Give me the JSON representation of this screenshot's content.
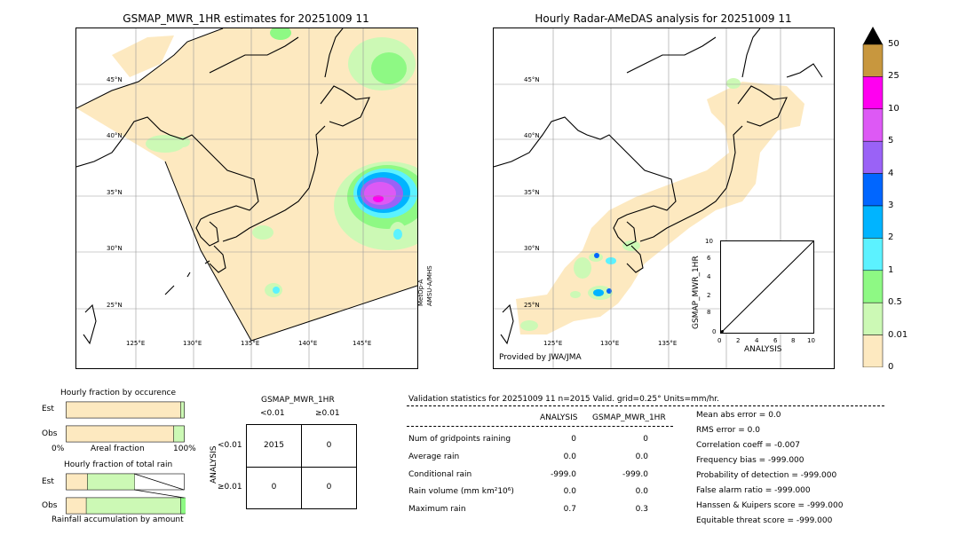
{
  "left_panel": {
    "title": "GSMAP_MWR_1HR estimates for 20251009 11",
    "lat_labels": [
      "45°N",
      "40°N",
      "35°N",
      "30°N",
      "25°N"
    ],
    "lon_labels": [
      "125°E",
      "130°E",
      "135°E",
      "140°E",
      "145°E"
    ],
    "sensor_label_1": "MetOp-A",
    "sensor_label_2": "AMSU-A/MHS"
  },
  "right_panel": {
    "title": "Hourly Radar-AMeDAS analysis for 20251009 11",
    "lat_labels": [
      "45°N",
      "40°N",
      "35°N",
      "30°N",
      "25°N"
    ],
    "lon_labels": [
      "125°E",
      "130°E",
      "135°E"
    ],
    "credit": "Provided by JWA/JMA"
  },
  "colorbar": {
    "labels": [
      "50",
      "25",
      "10",
      "5",
      "4",
      "3",
      "2",
      "1",
      "0.5",
      "0.01",
      "0"
    ],
    "colors": [
      "#c8973e",
      "#ff00f0",
      "#dd59f5",
      "#9a62f6",
      "#0066ff",
      "#00b4ff",
      "#5cf2ff",
      "#8ef984",
      "#ccf9b5",
      "#fde9c0"
    ]
  },
  "chart_data": [
    {
      "type": "scatter",
      "title": "",
      "xlabel": "ANALYSIS",
      "ylabel": "GSMAP_MWR_1HR",
      "xlim": [
        0,
        10
      ],
      "ylim": [
        0,
        10
      ],
      "x_ticks": [
        "0",
        "2",
        "4",
        "6",
        "8",
        "10"
      ],
      "y_ticks": [
        "0",
        "2",
        "4",
        "6",
        "8",
        "10"
      ],
      "reference_line": [
        [
          0,
          0
        ],
        [
          10,
          10
        ]
      ],
      "points": [
        [
          0,
          0
        ]
      ]
    },
    {
      "type": "bar",
      "title": "Hourly fraction by occurence",
      "categories": [
        "Est",
        "Obs"
      ],
      "xlabel": "Areal fraction",
      "x_ticks": [
        "0%",
        "100%"
      ],
      "series": [
        {
          "values": [
            0.97,
            0.91
          ],
          "color": "#fde9c0"
        },
        {
          "values": [
            0.03,
            0.09
          ],
          "color": "#ccf9b5"
        }
      ]
    },
    {
      "type": "bar",
      "title": "Hourly fraction of total rain",
      "categories": [
        "Est",
        "Obs"
      ],
      "xlabel": "Rainfall accumulation by amount",
      "series": [
        {
          "values": [
            0.18,
            0.17
          ],
          "color": "#fde9c0"
        },
        {
          "values": [
            0.4,
            0.8
          ],
          "color": "#ccf9b5"
        },
        {
          "values": [
            0,
            0.06
          ],
          "color": "#8ef984"
        }
      ]
    }
  ],
  "contingency": {
    "title": "GSMAP_MWR_1HR",
    "col_headers": [
      "<0.01",
      "≥0.01"
    ],
    "row_axis_label": "ANALYSIS",
    "row_headers": [
      "<0.01",
      "≥0.01"
    ],
    "cells": [
      [
        "2015",
        "0"
      ],
      [
        "0",
        "0"
      ]
    ]
  },
  "validation": {
    "header": "Validation statistics for 20251009 11  n=2015 Valid. grid=0.25° Units=mm/hr.",
    "col_headers": [
      "ANALYSIS",
      "GSMAP_MWR_1HR"
    ],
    "rows": [
      {
        "label": "Num of gridpoints raining",
        "analysis": "0",
        "gsmap": "0"
      },
      {
        "label": "Average rain",
        "analysis": "0.0",
        "gsmap": "0.0"
      },
      {
        "label": "Conditional rain",
        "analysis": "-999.0",
        "gsmap": "-999.0"
      },
      {
        "label": "Rain volume (mm km²10⁶)",
        "analysis": "0.0",
        "gsmap": "0.0"
      },
      {
        "label": "Maximum rain",
        "analysis": "0.7",
        "gsmap": "0.3"
      }
    ],
    "scores": [
      "Mean abs error =    0.0",
      "RMS error =    0.0",
      "Correlation coeff = -0.007",
      "Frequency bias = -999.000",
      "Probability of detection = -999.000",
      "False alarm ratio = -999.000",
      "Hanssen & Kuipers score = -999.000",
      "Equitable threat score = -999.000"
    ]
  }
}
